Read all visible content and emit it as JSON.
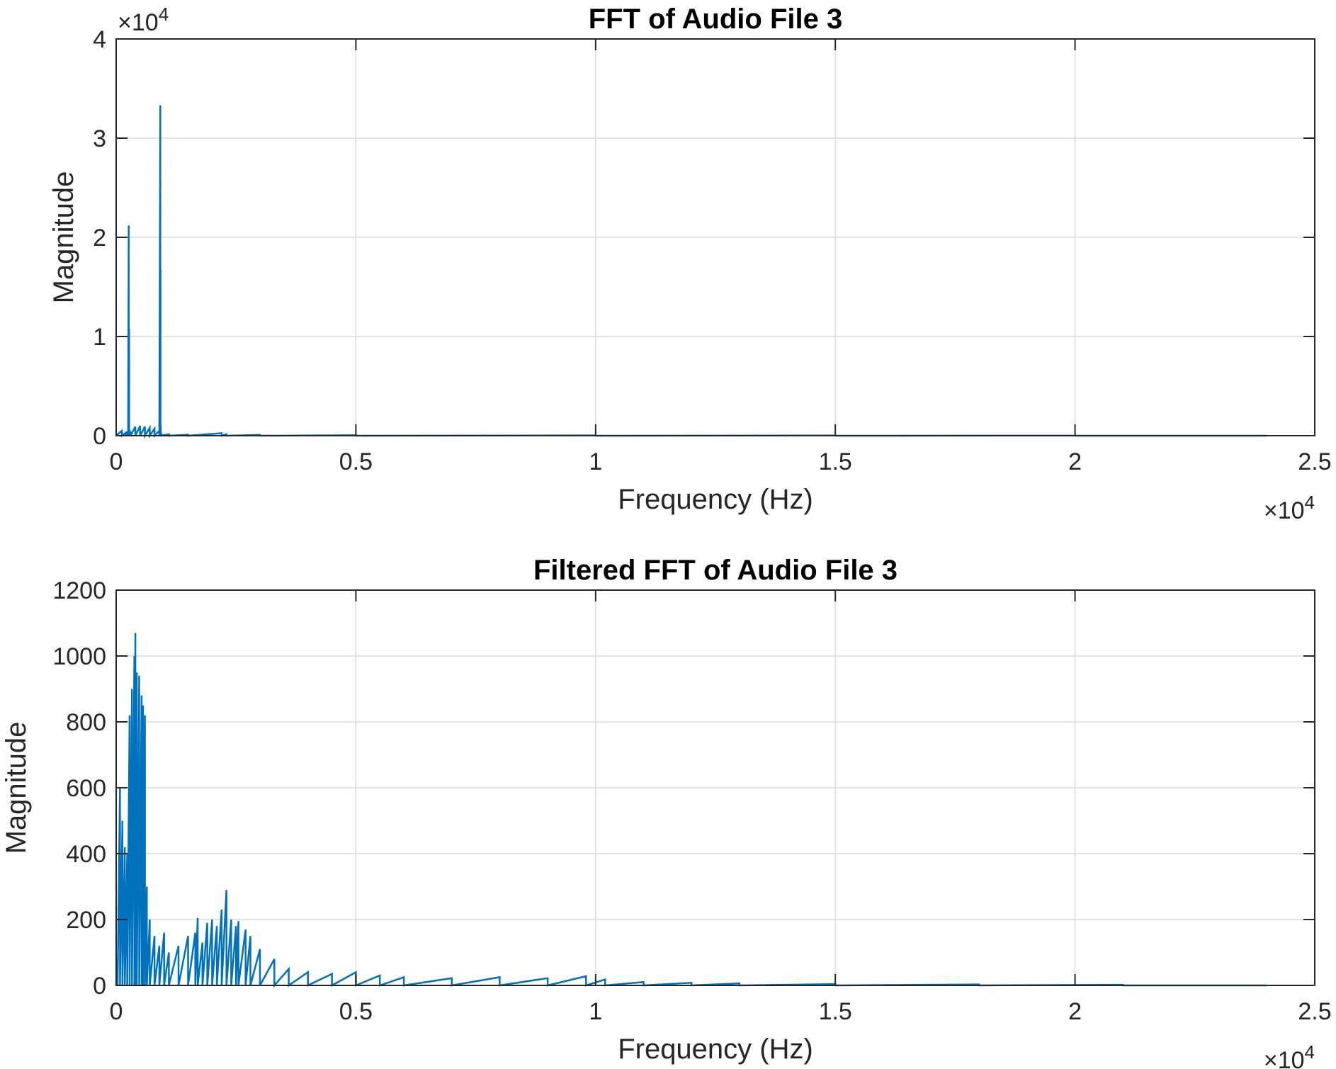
{
  "chart_data": [
    {
      "type": "line",
      "title": "FFT of Audio File 3",
      "xlabel": "Frequency (Hz)",
      "ylabel": "Magnitude",
      "xlim": [
        0,
        25000
      ],
      "ylim": [
        0,
        40000
      ],
      "grid": true,
      "x_ticks": [
        0,
        5000,
        10000,
        15000,
        20000,
        25000
      ],
      "x_tick_labels": [
        "0",
        "0.5",
        "1",
        "1.5",
        "2",
        "2.5"
      ],
      "x_exponent_label": "×10",
      "x_exponent": "4",
      "y_ticks": [
        0,
        10000,
        20000,
        30000,
        40000
      ],
      "y_tick_labels": [
        "0",
        "1",
        "2",
        "3",
        "4"
      ],
      "y_exponent_label": "×10",
      "y_exponent": "4",
      "color": "#0072bd",
      "series": [
        {
          "x": [
            0,
            120,
            200,
            250,
            262,
            270,
            280,
            300,
            400,
            500,
            600,
            700,
            800,
            900,
            920,
            925,
            930,
            935,
            950,
            1100,
            1500,
            2200,
            2300,
            3000,
            5000,
            10000,
            15000,
            20000,
            24000
          ],
          "y": [
            0,
            500,
            300,
            500,
            21200,
            10800,
            600,
            400,
            900,
            1000,
            900,
            800,
            700,
            500,
            33300,
            16800,
            1000,
            300,
            200,
            150,
            100,
            250,
            150,
            80,
            40,
            30,
            20,
            10,
            0
          ]
        }
      ]
    },
    {
      "type": "line",
      "title": "Filtered FFT of Audio File 3",
      "xlabel": "Frequency (Hz)",
      "ylabel": "Magnitude",
      "xlim": [
        0,
        25000
      ],
      "ylim": [
        0,
        1200
      ],
      "grid": true,
      "x_ticks": [
        0,
        5000,
        10000,
        15000,
        20000,
        25000
      ],
      "x_tick_labels": [
        "0",
        "0.5",
        "1",
        "1.5",
        "2",
        "2.5"
      ],
      "x_exponent_label": "×10",
      "x_exponent": "4",
      "y_ticks": [
        0,
        200,
        400,
        600,
        800,
        1000,
        1200
      ],
      "y_tick_labels": [
        "0",
        "200",
        "400",
        "600",
        "800",
        "1000",
        "1200"
      ],
      "color": "#0072bd",
      "series": [
        {
          "x": [
            0,
            30,
            80,
            130,
            180,
            230,
            280,
            330,
            380,
            400,
            430,
            480,
            530,
            560,
            600,
            640,
            700,
            800,
            900,
            1000,
            1100,
            1300,
            1500,
            1650,
            1700,
            1800,
            1900,
            2000,
            2100,
            2200,
            2300,
            2400,
            2500,
            2550,
            2700,
            2800,
            3000,
            3300,
            3600,
            4000,
            4500,
            5000,
            5500,
            6000,
            7000,
            8000,
            9000,
            9800,
            10200,
            11000,
            12000,
            13000,
            15000,
            18000,
            21000,
            24000
          ],
          "y": [
            0,
            80,
            600,
            500,
            420,
            400,
            820,
            900,
            1000,
            1070,
            950,
            940,
            880,
            850,
            820,
            300,
            200,
            150,
            120,
            160,
            100,
            120,
            150,
            160,
            205,
            130,
            190,
            200,
            180,
            230,
            290,
            200,
            180,
            195,
            170,
            150,
            110,
            80,
            50,
            40,
            35,
            40,
            30,
            25,
            22,
            25,
            22,
            28,
            18,
            10,
            8,
            6,
            4,
            3,
            2,
            0
          ]
        }
      ]
    }
  ]
}
